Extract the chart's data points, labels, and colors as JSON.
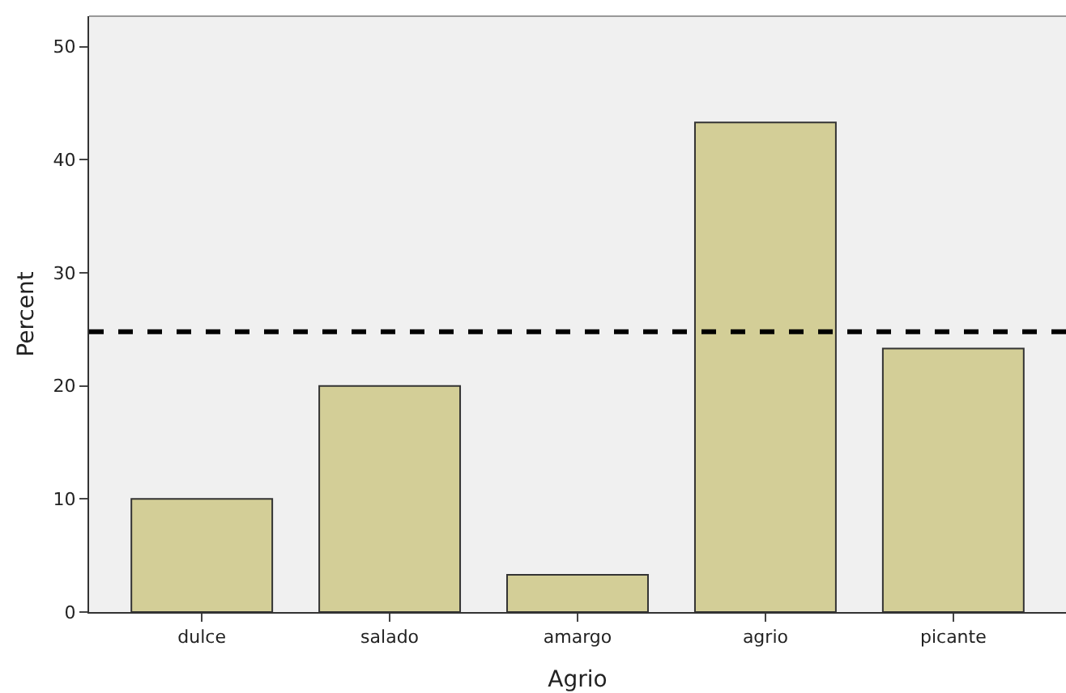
{
  "chart_data": {
    "type": "bar",
    "xlabel": "Agrio",
    "ylabel": "Percent",
    "categories": [
      "dulce",
      "salado",
      "amargo",
      "agrio",
      "picante"
    ],
    "values": [
      10,
      20,
      3.3,
      43.3,
      23.3
    ],
    "color": "#d3ce97",
    "ylim": [
      0,
      52.7
    ],
    "yticks": [
      0,
      10,
      20,
      30,
      40,
      50
    ],
    "grid": false,
    "ref_lines": [
      {
        "axis": "y",
        "value": 24.8,
        "color": "#000000",
        "line_style": "dashed"
      }
    ]
  }
}
